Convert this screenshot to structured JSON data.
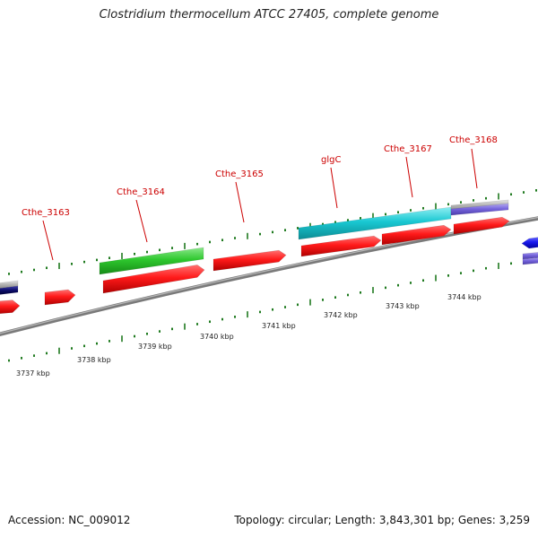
{
  "title": "Clostridium thermocellum ATCC 27405, complete genome",
  "footer": {
    "accession": "Accession: NC_009012",
    "info": "Topology: circular; Length: 3,843,301 bp; Genes: 3,259"
  },
  "gene_labels": [
    "Cthe_3163",
    "Cthe_3164",
    "Cthe_3165",
    "glgC",
    "Cthe_3167",
    "Cthe_3168"
  ],
  "scale_labels": [
    "3737 kbp",
    "3738 kbp",
    "3739 kbp",
    "3740 kbp",
    "3741 kbp",
    "3742 kbp",
    "3743 kbp",
    "3744 kbp"
  ],
  "colors": {
    "gene_red": "#ff1a1a",
    "gene_green": "#2ec82e",
    "gene_cyan": "#19c8d2",
    "gene_purple": "#7766dd",
    "gene_grey": "#b4b4b4",
    "gene_blue": "#1a1aee",
    "gene_navy": "#0a0a66",
    "backbone": "#808080",
    "tick": "#1f7a1f",
    "label": "#cc0000"
  }
}
